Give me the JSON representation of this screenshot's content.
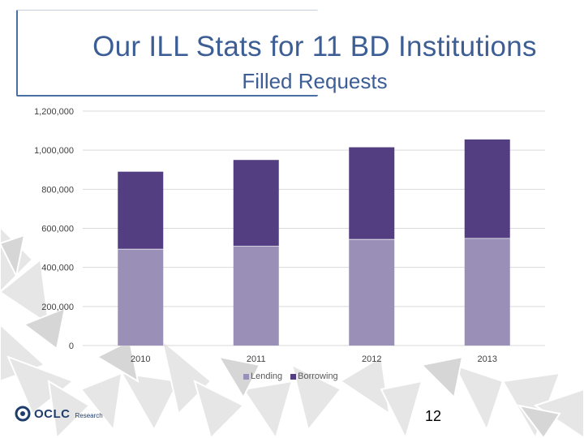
{
  "slide": {
    "title": "Our ILL Stats for 11 BD Institutions",
    "page_number": "12",
    "logo_text": "OCLC",
    "logo_sub": "Research"
  },
  "colors": {
    "lending": "#9a8fb7",
    "borrowing": "#533e82",
    "title": "#3d5e95",
    "grid": "#d9d9d9"
  },
  "chart_data": {
    "type": "bar",
    "stacked": true,
    "title": "Filled Requests",
    "categories": [
      "2010",
      "2011",
      "2012",
      "2013"
    ],
    "series": [
      {
        "name": "Lending",
        "values": [
          495000,
          510000,
          545000,
          550000
        ]
      },
      {
        "name": "Borrowing",
        "values": [
          395000,
          440000,
          470000,
          505000
        ]
      }
    ],
    "ylim": [
      0,
      1200000
    ],
    "yticks": [
      "0",
      "200,000",
      "400,000",
      "600,000",
      "800,000",
      "1,000,000",
      "1,200,000"
    ],
    "grid": true,
    "legend_position": "bottom"
  }
}
